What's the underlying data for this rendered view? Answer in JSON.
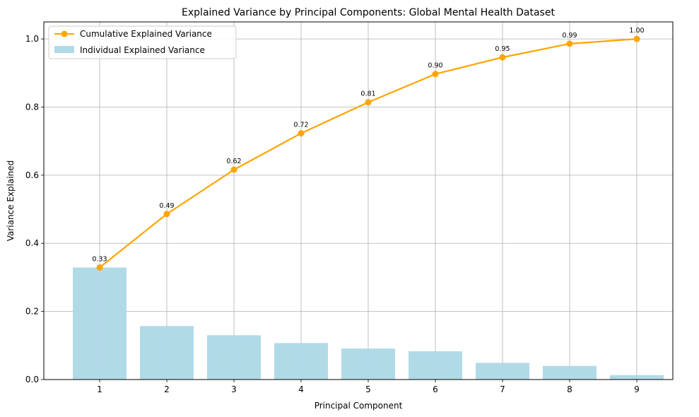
{
  "chart_data": {
    "type": "bar",
    "title": "Explained Variance by Principal Components: Global Mental Health Dataset",
    "xlabel": "Principal Component",
    "ylabel": "Variance Explained",
    "categories": [
      "1",
      "2",
      "3",
      "4",
      "5",
      "6",
      "7",
      "8",
      "9"
    ],
    "yticks": [
      "0.0",
      "0.2",
      "0.4",
      "0.6",
      "0.8",
      "1.0"
    ],
    "ylim": [
      0,
      1.05
    ],
    "grid": true,
    "legend_position": "top-left",
    "series": [
      {
        "name": "Individual Explained Variance",
        "kind": "bar",
        "color": "#add8e6",
        "values": [
          0.329,
          0.157,
          0.13,
          0.107,
          0.091,
          0.083,
          0.049,
          0.04,
          0.013
        ]
      },
      {
        "name": "Cumulative Explained Variance",
        "kind": "line",
        "color": "#ffa500",
        "marker": "circle",
        "values": [
          0.329,
          0.486,
          0.616,
          0.723,
          0.814,
          0.897,
          0.946,
          0.986,
          1.0
        ],
        "labels": [
          "0.33",
          "0.49",
          "0.62",
          "0.72",
          "0.81",
          "0.90",
          "0.95",
          "0.99",
          "1.00"
        ]
      }
    ]
  }
}
